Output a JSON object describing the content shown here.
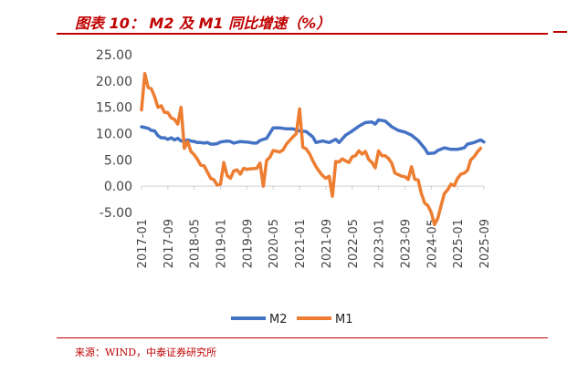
{
  "figure": {
    "title": "图表 10： M2 及 M1 同比增速（%）",
    "source": "来源：WIND，中泰证券研究所"
  },
  "colors": {
    "m2": "#4472c4",
    "m1": "#ed7d31",
    "accent": "#c00000"
  },
  "chart_data": {
    "type": "line",
    "title": "",
    "xlabel": "",
    "ylabel": "",
    "ylim": [
      -5,
      25
    ],
    "yticks": [
      "25.00",
      "20.00",
      "15.00",
      "10.00",
      "5.00",
      "0.00",
      "-5.00"
    ],
    "xtick_labels": [
      "2017-01",
      "2017-09",
      "2018-05",
      "2019-01",
      "2019-09",
      "2020-05",
      "2021-01",
      "2021-09",
      "2022-05",
      "2023-01",
      "2023-09",
      "2024-05",
      "2025-01",
      "2025-09"
    ],
    "legend_position": "bottom",
    "series": [
      {
        "name": "M2",
        "values": [
          [
            0,
            11.3
          ],
          [
            2,
            11.0
          ],
          [
            3,
            10.6
          ],
          [
            4,
            10.5
          ],
          [
            5,
            9.6
          ],
          [
            6,
            9.2
          ],
          [
            7,
            9.2
          ],
          [
            8,
            8.9
          ],
          [
            9,
            9.2
          ],
          [
            10,
            8.8
          ],
          [
            11,
            9.1
          ],
          [
            12,
            8.6
          ],
          [
            13,
            8.6
          ],
          [
            14,
            8.8
          ],
          [
            15,
            8.6
          ],
          [
            16,
            8.5
          ],
          [
            17,
            8.3
          ],
          [
            18,
            8.3
          ],
          [
            19,
            8.2
          ],
          [
            20,
            8.3
          ],
          [
            21,
            8.0
          ],
          [
            22,
            8.0
          ],
          [
            23,
            8.1
          ],
          [
            24,
            8.4
          ],
          [
            26,
            8.6
          ],
          [
            27,
            8.5
          ],
          [
            28,
            8.2
          ],
          [
            30,
            8.5
          ],
          [
            32,
            8.4
          ],
          [
            34,
            8.2
          ],
          [
            35,
            8.2
          ],
          [
            36,
            8.7
          ],
          [
            38,
            9.1
          ],
          [
            39,
            10.1
          ],
          [
            40,
            11.1
          ],
          [
            42,
            11.1
          ],
          [
            44,
            10.9
          ],
          [
            46,
            10.9
          ],
          [
            48,
            10.5
          ],
          [
            50,
            10.4
          ],
          [
            52,
            9.4
          ],
          [
            53,
            8.3
          ],
          [
            55,
            8.6
          ],
          [
            57,
            8.3
          ],
          [
            59,
            8.9
          ],
          [
            60,
            8.3
          ],
          [
            62,
            9.7
          ],
          [
            64,
            10.5
          ],
          [
            66,
            11.4
          ],
          [
            68,
            12.1
          ],
          [
            70,
            12.2
          ],
          [
            71,
            11.8
          ],
          [
            72,
            12.6
          ],
          [
            74,
            12.4
          ],
          [
            76,
            11.3
          ],
          [
            78,
            10.6
          ],
          [
            80,
            10.3
          ],
          [
            82,
            9.7
          ],
          [
            84,
            8.7
          ],
          [
            86,
            7.2
          ],
          [
            87,
            6.2
          ],
          [
            89,
            6.3
          ],
          [
            90,
            6.8
          ],
          [
            92,
            7.3
          ],
          [
            94,
            7.0
          ],
          [
            96,
            7.0
          ],
          [
            98,
            7.3
          ],
          [
            99,
            8.0
          ],
          [
            101,
            8.3
          ],
          [
            103,
            8.8
          ],
          [
            104,
            8.4
          ]
        ]
      },
      {
        "name": "M1",
        "values": [
          [
            0,
            14.5
          ],
          [
            1,
            21.4
          ],
          [
            2,
            18.8
          ],
          [
            3,
            18.5
          ],
          [
            4,
            17.0
          ],
          [
            5,
            15.0
          ],
          [
            6,
            15.3
          ],
          [
            7,
            14.0
          ],
          [
            8,
            14.0
          ],
          [
            9,
            13.0
          ],
          [
            10,
            12.7
          ],
          [
            11,
            11.8
          ],
          [
            12,
            15.0
          ],
          [
            13,
            7.2
          ],
          [
            14,
            8.5
          ],
          [
            15,
            6.6
          ],
          [
            16,
            6.0
          ],
          [
            17,
            5.1
          ],
          [
            18,
            4.0
          ],
          [
            19,
            3.9
          ],
          [
            20,
            2.7
          ],
          [
            21,
            1.5
          ],
          [
            22,
            1.2
          ],
          [
            23,
            0.2
          ],
          [
            24,
            0.4
          ],
          [
            25,
            4.5
          ],
          [
            26,
            2.0
          ],
          [
            27,
            1.5
          ],
          [
            28,
            2.9
          ],
          [
            29,
            3.1
          ],
          [
            30,
            2.3
          ],
          [
            31,
            3.4
          ],
          [
            32,
            3.2
          ],
          [
            33,
            3.3
          ],
          [
            35,
            3.4
          ],
          [
            36,
            4.4
          ],
          [
            37,
            0.0
          ],
          [
            38,
            4.9
          ],
          [
            39,
            5.5
          ],
          [
            40,
            6.8
          ],
          [
            42,
            6.5
          ],
          [
            43,
            6.9
          ],
          [
            44,
            8.0
          ],
          [
            46,
            9.4
          ],
          [
            47,
            10.0
          ],
          [
            48,
            14.7
          ],
          [
            49,
            7.4
          ],
          [
            50,
            7.1
          ],
          [
            51,
            6.2
          ],
          [
            52,
            4.9
          ],
          [
            53,
            3.7
          ],
          [
            54,
            2.8
          ],
          [
            55,
            2.0
          ],
          [
            56,
            1.5
          ],
          [
            57,
            1.9
          ],
          [
            58,
            -1.9
          ],
          [
            59,
            4.7
          ],
          [
            60,
            4.6
          ],
          [
            61,
            5.2
          ],
          [
            62,
            4.8
          ],
          [
            63,
            4.5
          ],
          [
            64,
            5.6
          ],
          [
            65,
            5.8
          ],
          [
            66,
            6.7
          ],
          [
            67,
            6.1
          ],
          [
            68,
            6.6
          ],
          [
            69,
            5.1
          ],
          [
            70,
            4.5
          ],
          [
            71,
            3.5
          ],
          [
            72,
            6.7
          ],
          [
            73,
            5.8
          ],
          [
            74,
            5.8
          ],
          [
            75,
            5.3
          ],
          [
            76,
            4.4
          ],
          [
            77,
            2.5
          ],
          [
            78,
            2.2
          ],
          [
            79,
            1.9
          ],
          [
            80,
            1.8
          ],
          [
            81,
            1.3
          ],
          [
            82,
            3.7
          ],
          [
            83,
            1.3
          ],
          [
            84,
            1.2
          ],
          [
            85,
            -1.4
          ],
          [
            86,
            -3.2
          ],
          [
            87,
            -3.7
          ],
          [
            88,
            -5.0
          ],
          [
            89,
            -7.3
          ],
          [
            90,
            -6.1
          ],
          [
            91,
            -3.7
          ],
          [
            92,
            -1.4
          ],
          [
            93,
            -0.7
          ],
          [
            94,
            0.4
          ],
          [
            95,
            0.1
          ],
          [
            96,
            1.5
          ],
          [
            97,
            2.3
          ],
          [
            98,
            2.5
          ],
          [
            99,
            3.0
          ],
          [
            100,
            5.0
          ],
          [
            101,
            5.6
          ],
          [
            102,
            6.5
          ],
          [
            103,
            7.2
          ]
        ]
      }
    ]
  }
}
